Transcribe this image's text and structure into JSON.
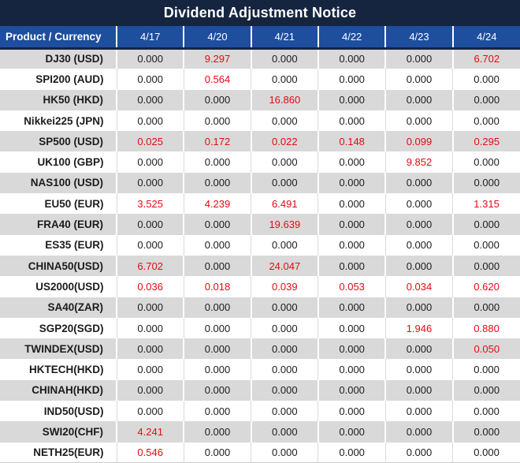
{
  "title": "Dividend Adjustment Notice",
  "colors": {
    "title_bg": "#152540",
    "header_bg": "#1e4e9e",
    "header_text": "#ffffff",
    "row_alt_bg": "#d9d9d9",
    "row_bg": "#ffffff",
    "value_text": "#1c1c1c",
    "highlight_text": "#e60a12"
  },
  "chart_data": {
    "type": "table",
    "title": "Dividend Adjustment Notice",
    "columns": [
      "Product / Currency",
      "4/17",
      "4/20",
      "4/21",
      "4/22",
      "4/23",
      "4/24"
    ],
    "rows": [
      {
        "product": "DJ30 (USD)",
        "values": [
          "0.000",
          "9.297",
          "0.000",
          "0.000",
          "0.000",
          "6.702"
        ]
      },
      {
        "product": "SPI200 (AUD)",
        "values": [
          "0.000",
          "0.564",
          "0.000",
          "0.000",
          "0.000",
          "0.000"
        ]
      },
      {
        "product": "HK50 (HKD)",
        "values": [
          "0.000",
          "0.000",
          "16.860",
          "0.000",
          "0.000",
          "0.000"
        ]
      },
      {
        "product": "Nikkei225 (JPN)",
        "values": [
          "0.000",
          "0.000",
          "0.000",
          "0.000",
          "0.000",
          "0.000"
        ]
      },
      {
        "product": "SP500 (USD)",
        "values": [
          "0.025",
          "0.172",
          "0.022",
          "0.148",
          "0.099",
          "0.295"
        ]
      },
      {
        "product": "UK100 (GBP)",
        "values": [
          "0.000",
          "0.000",
          "0.000",
          "0.000",
          "9.852",
          "0.000"
        ]
      },
      {
        "product": "NAS100 (USD)",
        "values": [
          "0.000",
          "0.000",
          "0.000",
          "0.000",
          "0.000",
          "0.000"
        ]
      },
      {
        "product": "EU50 (EUR)",
        "values": [
          "3.525",
          "4.239",
          "6.491",
          "0.000",
          "0.000",
          "1.315"
        ]
      },
      {
        "product": "FRA40 (EUR)",
        "values": [
          "0.000",
          "0.000",
          "19.639",
          "0.000",
          "0.000",
          "0.000"
        ]
      },
      {
        "product": "ES35 (EUR)",
        "values": [
          "0.000",
          "0.000",
          "0.000",
          "0.000",
          "0.000",
          "0.000"
        ]
      },
      {
        "product": "CHINA50(USD)",
        "values": [
          "6.702",
          "0.000",
          "24.047",
          "0.000",
          "0.000",
          "0.000"
        ]
      },
      {
        "product": "US2000(USD)",
        "values": [
          "0.036",
          "0.018",
          "0.039",
          "0.053",
          "0.034",
          "0.620"
        ]
      },
      {
        "product": "SA40(ZAR)",
        "values": [
          "0.000",
          "0.000",
          "0.000",
          "0.000",
          "0.000",
          "0.000"
        ]
      },
      {
        "product": "SGP20(SGD)",
        "values": [
          "0.000",
          "0.000",
          "0.000",
          "0.000",
          "1.946",
          "0.880"
        ]
      },
      {
        "product": "TWINDEX(USD)",
        "values": [
          "0.000",
          "0.000",
          "0.000",
          "0.000",
          "0.000",
          "0.050"
        ]
      },
      {
        "product": "HKTECH(HKD)",
        "values": [
          "0.000",
          "0.000",
          "0.000",
          "0.000",
          "0.000",
          "0.000"
        ]
      },
      {
        "product": "CHINAH(HKD)",
        "values": [
          "0.000",
          "0.000",
          "0.000",
          "0.000",
          "0.000",
          "0.000"
        ]
      },
      {
        "product": "IND50(USD)",
        "values": [
          "0.000",
          "0.000",
          "0.000",
          "0.000",
          "0.000",
          "0.000"
        ]
      },
      {
        "product": "SWI20(CHF)",
        "values": [
          "4.241",
          "0.000",
          "0.000",
          "0.000",
          "0.000",
          "0.000"
        ]
      },
      {
        "product": "NETH25(EUR)",
        "values": [
          "0.546",
          "0.000",
          "0.000",
          "0.000",
          "0.000",
          "0.000"
        ]
      }
    ],
    "layout": {
      "alternating_row_shading": true,
      "highlight_rule": "non-zero values rendered in red",
      "first_column_align": "right",
      "value_columns_align": "center"
    }
  }
}
